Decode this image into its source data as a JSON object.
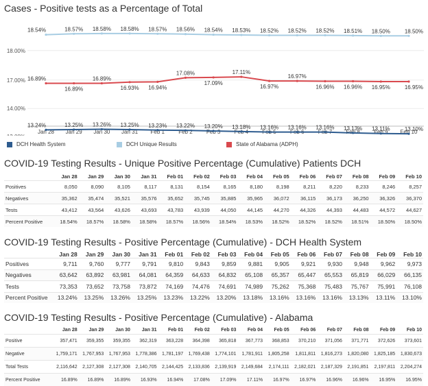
{
  "chart": {
    "title": "Cases - Positive tests as a Percentage of Total",
    "legend": [
      {
        "label": "DCH Health System",
        "color": "#2e5c8f"
      },
      {
        "label": "DCH Unique Results",
        "color": "#a8cde3"
      },
      {
        "label": "State of Alabama (ADPH)",
        "color": "#d9494e"
      }
    ]
  },
  "chart_data": {
    "type": "line",
    "title": "Cases - Positive tests as a Percentage of Total",
    "categories": [
      "Jan 28",
      "Jan 29",
      "Jan 30",
      "Jan 31",
      "Feb 1",
      "Feb 2",
      "Feb 3",
      "Feb 4",
      "Feb 5",
      "Feb 6",
      "Feb 7",
      "Feb 8",
      "Feb 9",
      "Feb 10"
    ],
    "y_ticks": [
      "18.00%",
      "17.00%",
      "14.00%",
      "13.00%"
    ],
    "axis_break": true,
    "grid": true,
    "legend_position": "bottom",
    "series": [
      {
        "name": "DCH Unique Results",
        "color": "#a8cde3",
        "values": [
          18.54,
          18.57,
          18.58,
          18.58,
          18.57,
          18.56,
          18.54,
          18.53,
          18.52,
          18.52,
          18.52,
          18.51,
          18.5,
          18.5
        ],
        "labels": [
          "18.54%",
          "18.57%",
          "18.58%",
          "18.58%",
          "18.57%",
          "18.56%",
          "18.54%",
          "18.53%",
          "18.52%",
          "18.52%",
          "18.52%",
          "18.51%",
          "18.50%",
          "18.50%"
        ]
      },
      {
        "name": "State of Alabama (ADPH)",
        "color": "#d9494e",
        "values": [
          16.89,
          16.89,
          16.89,
          16.93,
          16.94,
          17.08,
          17.09,
          17.11,
          16.97,
          16.97,
          16.96,
          16.96,
          16.95,
          16.95
        ],
        "labels": [
          "16.89%",
          "16.89%",
          "16.89%",
          "16.93%",
          "16.94%",
          "17.08%",
          "17.09%",
          "17.11%",
          "16.97%",
          "16.97%",
          "16.96%",
          "16.96%",
          "16.95%",
          "16.95%"
        ]
      },
      {
        "name": "DCH Health System",
        "color": "#2e5c8f",
        "values": [
          13.24,
          13.25,
          13.26,
          13.25,
          13.23,
          13.22,
          13.2,
          13.18,
          13.16,
          13.16,
          13.16,
          13.13,
          13.11,
          13.1
        ],
        "labels": [
          "13.24%",
          "13.25%",
          "13.26%",
          "13.25%",
          "13.23%",
          "13.22%",
          "13.20%",
          "13.18%",
          "13.16%",
          "13.16%",
          "13.16%",
          "13.13%",
          "13.11%",
          "13.10%"
        ]
      }
    ]
  },
  "tables": [
    {
      "title": "COVID-19 Testing Results - Unique Positive Percentage (Cumulative) Patients DCH",
      "headers": [
        "",
        "Jan 28",
        "Jan 29",
        "Jan 30",
        "Jan 31",
        "Feb 01",
        "Feb 02",
        "Feb 03",
        "Feb 04",
        "Feb 05",
        "Feb 06",
        "Feb 07",
        "Feb 08",
        "Feb 09",
        "Feb 10"
      ],
      "rows": [
        [
          "Positives",
          "8,050",
          "8,090",
          "8,105",
          "8,117",
          "8,131",
          "8,154",
          "8,165",
          "8,180",
          "8,198",
          "8,211",
          "8,220",
          "8,233",
          "8,246",
          "8,257"
        ],
        [
          "Negatives",
          "35,362",
          "35,474",
          "35,521",
          "35,576",
          "35,652",
          "35,745",
          "35,885",
          "35,965",
          "36,072",
          "36,115",
          "36,173",
          "36,250",
          "36,326",
          "36,370"
        ],
        [
          "Tests",
          "43,412",
          "43,564",
          "43,626",
          "43,693",
          "43,783",
          "43,939",
          "44,050",
          "44,145",
          "44,270",
          "44,326",
          "44,393",
          "44,483",
          "44,572",
          "44,627"
        ],
        [
          "Percent Positive",
          "18.54%",
          "18.57%",
          "18.58%",
          "18.58%",
          "18.57%",
          "18.56%",
          "18.54%",
          "18.53%",
          "18.52%",
          "18.52%",
          "18.52%",
          "18.51%",
          "18.50%",
          "18.50%"
        ]
      ]
    },
    {
      "title": "COVID-19 Testing Results - Positive Percentage (Cumulative) - DCH Health System",
      "headers": [
        "",
        "Jan 28",
        "Jan 29",
        "Jan 30",
        "Jan 31",
        "Feb 01",
        "Feb 02",
        "Feb 03",
        "Feb 04",
        "Feb 05",
        "Feb 06",
        "Feb 07",
        "Feb 08",
        "Feb 09",
        "Feb 10"
      ],
      "rows": [
        [
          "Positives",
          "9,711",
          "9,760",
          "9,777",
          "9,791",
          "9,810",
          "9,843",
          "9,859",
          "9,881",
          "9,905",
          "9,921",
          "9,930",
          "9,948",
          "9,962",
          "9,973"
        ],
        [
          "Negatives",
          "63,642",
          "63,892",
          "63,981",
          "64,081",
          "64,359",
          "64,633",
          "64,832",
          "65,108",
          "65,357",
          "65,447",
          "65,553",
          "65,819",
          "66,029",
          "66,135"
        ],
        [
          "Tests",
          "73,353",
          "73,652",
          "73,758",
          "73,872",
          "74,169",
          "74,476",
          "74,691",
          "74,989",
          "75,262",
          "75,368",
          "75,483",
          "75,767",
          "75,991",
          "76,108"
        ],
        [
          "Percent Positive",
          "13.24%",
          "13.25%",
          "13.26%",
          "13.25%",
          "13.23%",
          "13.22%",
          "13.20%",
          "13.18%",
          "13.16%",
          "13.16%",
          "13.16%",
          "13.13%",
          "13.11%",
          "13.10%"
        ]
      ]
    },
    {
      "title": "COVID-19 Testing Results - Positive Percentage (Cumulative) - Alabama",
      "headers": [
        "",
        "Jan 28",
        "Jan 29",
        "Jan 30",
        "Jan 31",
        "Feb 01",
        "Feb 02",
        "Feb 03",
        "Feb 04",
        "Feb 05",
        "Feb 06",
        "Feb 07",
        "Feb 08",
        "Feb 09",
        "Feb 10"
      ],
      "rows": [
        [
          "Positive",
          "357,471",
          "359,355",
          "359,355",
          "362,319",
          "363,228",
          "364,398",
          "365,818",
          "367,773",
          "368,853",
          "370,210",
          "371,056",
          "371,771",
          "372,626",
          "373,601"
        ],
        [
          "Negative",
          "1,759,171",
          "1,767,953",
          "1,767,953",
          "1,778,386",
          "1,781,197",
          "1,769,438",
          "1,774,101",
          "1,781,911",
          "1,805,258",
          "1,811,811",
          "1,816,273",
          "1,820,080",
          "1,825,185",
          "1,830,673"
        ],
        [
          "Total Tests",
          "2,116,642",
          "2,127,308",
          "2,127,308",
          "2,140,705",
          "2,144,425",
          "2,133,836",
          "2,139,919",
          "2,149,684",
          "2,174,111",
          "2,182,021",
          "2,187,329",
          "2,191,851",
          "2,197,811",
          "2,204,274"
        ],
        [
          "Percent Positive",
          "16.89%",
          "16.89%",
          "16.89%",
          "16.93%",
          "16.94%",
          "17.08%",
          "17.09%",
          "17.11%",
          "16.97%",
          "16.97%",
          "16.96%",
          "16.96%",
          "16.95%",
          "16.95%"
        ]
      ]
    }
  ]
}
